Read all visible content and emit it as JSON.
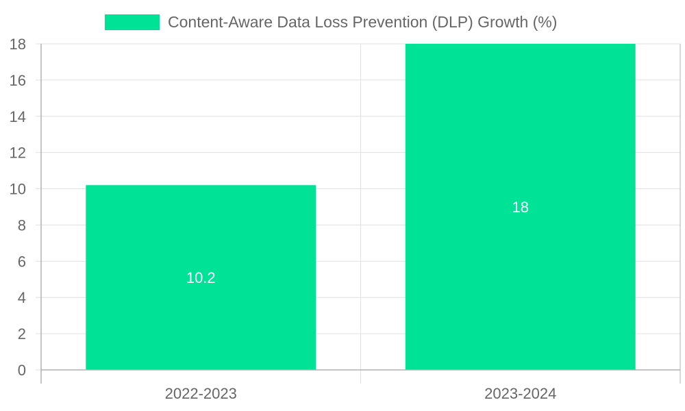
{
  "chart_data": {
    "type": "bar",
    "title": "",
    "xlabel": "",
    "ylabel": "",
    "categories": [
      "2022-2023",
      "2023-2024"
    ],
    "series": [
      {
        "name": "Content-Aware Data Loss Prevention (DLP) Growth (%)",
        "values": [
          10.2,
          18
        ],
        "color": "#00e396"
      }
    ],
    "data_labels": [
      "10.2",
      "18"
    ],
    "ylim": [
      0,
      18
    ],
    "y_ticks": [
      "0",
      "2",
      "4",
      "6",
      "8",
      "10",
      "12",
      "14",
      "16",
      "18"
    ],
    "grid": true,
    "legend_position": "top-center"
  },
  "colors": {
    "grid": "#e0e0e0",
    "axis": "#b0b0b0",
    "text": "#666666",
    "bar": "#00e396",
    "bar_label": "#ffffff"
  }
}
